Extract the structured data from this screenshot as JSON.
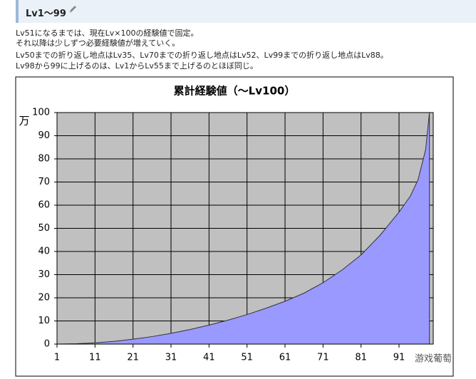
{
  "header": {
    "title": "Lv1～99"
  },
  "paragraphs": [
    "Lv51になるまでは、現在Lv×100の経験値で固定。",
    "それ以降は少しずつ必要経験値が増えていく。",
    "Lv50までの折り返し地点はLv35、Lv70までの折り返し地点はLv52、Lv99までの折り返し地点はLv88。",
    "Lv98から99に上げるのは、Lv1からLv55まで上げるのとほぼ同じ。"
  ],
  "chart_data": {
    "type": "area",
    "title": "累計経験値（～Lv100）",
    "y_unit": "万",
    "x": [
      1,
      6,
      11,
      16,
      21,
      26,
      31,
      36,
      41,
      46,
      51,
      56,
      61,
      66,
      71,
      76,
      81,
      86,
      91,
      94,
      96,
      98,
      99
    ],
    "values": [
      0,
      0.15,
      0.55,
      1.2,
      2.1,
      3.25,
      4.65,
      6.3,
      8.2,
      10.35,
      12.75,
      15.5,
      18.5,
      22,
      26.5,
      32,
      38.5,
      47,
      57,
      64,
      71,
      84,
      100
    ],
    "color": "#9999ff",
    "plot_background": "#c0c0c0",
    "grid": true,
    "xlim": [
      1,
      100
    ],
    "xticks": [
      1,
      11,
      21,
      31,
      41,
      51,
      61,
      71,
      81,
      91
    ],
    "ylim": [
      0,
      100
    ],
    "yticks": [
      0,
      10,
      20,
      30,
      40,
      50,
      60,
      70,
      80,
      90,
      100
    ]
  },
  "watermark": "游戏葡萄"
}
